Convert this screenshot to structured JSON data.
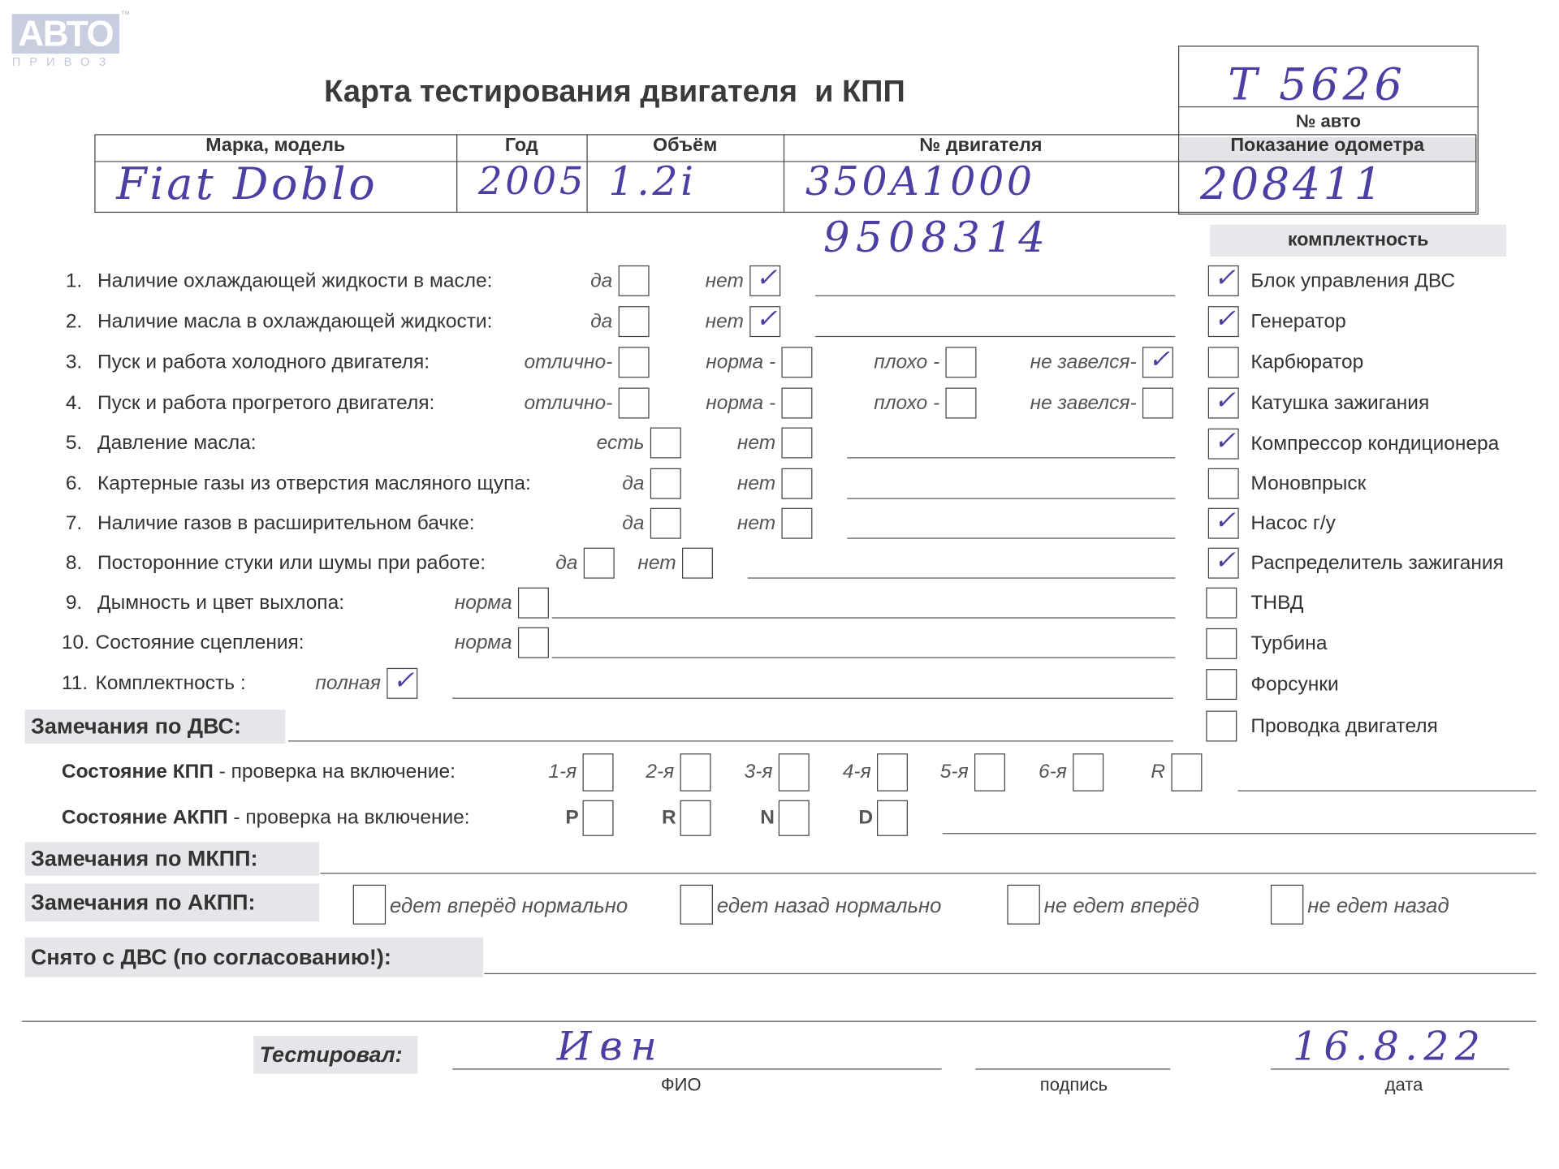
{
  "logo": {
    "text": "АВТО",
    "sub": "ПРИВОЗ",
    "tm": "™"
  },
  "title": "Карта тестирования двигателя  и КПП",
  "car_no": {
    "caption": "№ авто",
    "value": "T 5626"
  },
  "header_table": {
    "columns": [
      "Марка, модель",
      "Год",
      "Объём",
      "№ двигателя",
      "Показание одометра"
    ],
    "values": [
      "Fiat Doblo",
      "2005",
      "1.2i",
      "350A1000",
      "208411"
    ],
    "engine_no_extra": "9508314"
  },
  "checklist": [
    {
      "num": "1.",
      "label": "Наличие охлаждающей жидкости в масле:",
      "options": [
        {
          "label": "да",
          "checked": false
        },
        {
          "label": "нет",
          "checked": true
        }
      ]
    },
    {
      "num": "2.",
      "label": "Наличие масла в охлаждающей жидкости:",
      "options": [
        {
          "label": "да",
          "checked": false
        },
        {
          "label": "нет",
          "checked": true
        }
      ]
    },
    {
      "num": "3.",
      "label": "Пуск и работа холодного двигателя:",
      "options": [
        {
          "label": "отлично-",
          "checked": false
        },
        {
          "label": "норма -",
          "checked": false
        },
        {
          "label": "плохо -",
          "checked": false
        },
        {
          "label": "не завелся-",
          "checked": true
        }
      ]
    },
    {
      "num": "4.",
      "label": "Пуск и работа прогретого двигателя:",
      "options": [
        {
          "label": "отлично-",
          "checked": false
        },
        {
          "label": "норма -",
          "checked": false
        },
        {
          "label": "плохо -",
          "checked": false
        },
        {
          "label": "не завелся-",
          "checked": false
        }
      ]
    },
    {
      "num": "5.",
      "label": "Давление масла:",
      "options": [
        {
          "label": "есть",
          "checked": false
        },
        {
          "label": "нет",
          "checked": false
        }
      ]
    },
    {
      "num": "6.",
      "label": "Картерные газы из отверстия масляного щупа:",
      "options": [
        {
          "label": "да",
          "checked": false
        },
        {
          "label": "нет",
          "checked": false
        }
      ]
    },
    {
      "num": "7.",
      "label": "Наличие газов в расширительном бачке:",
      "options": [
        {
          "label": "да",
          "checked": false
        },
        {
          "label": "нет",
          "checked": false
        }
      ]
    },
    {
      "num": "8.",
      "label": "Посторонние стуки или шумы при работе:",
      "options": [
        {
          "label": "да",
          "checked": false
        },
        {
          "label": "нет",
          "checked": false
        }
      ]
    },
    {
      "num": "9.",
      "label": "Дымность и цвет выхлопа:",
      "options": [
        {
          "label": "норма",
          "checked": false
        }
      ]
    },
    {
      "num": "10.",
      "label": "Состояние сцепления:",
      "options": [
        {
          "label": "норма",
          "checked": false
        }
      ]
    },
    {
      "num": "11.",
      "label": "Комплектность :",
      "options": [
        {
          "label": "полная",
          "checked": true
        }
      ]
    }
  ],
  "completeness": {
    "title": "комплектность",
    "items": [
      {
        "label": "Блок управления ДВС",
        "checked": true
      },
      {
        "label": "Генератор",
        "checked": true
      },
      {
        "label": "Карбюратор",
        "checked": false
      },
      {
        "label": "Катушка зажигания",
        "checked": true
      },
      {
        "label": "Компрессор кондиционера",
        "checked": true
      },
      {
        "label": "Моновпрыск",
        "checked": false
      },
      {
        "label": "Насос г/у",
        "checked": true
      },
      {
        "label": "Распределитель зажигания",
        "checked": true
      },
      {
        "label": "ТНВД",
        "checked": false
      },
      {
        "label": "Турбина",
        "checked": false
      },
      {
        "label": "Форсунки",
        "checked": false
      },
      {
        "label": "Проводка двигателя",
        "checked": false
      }
    ]
  },
  "check_mark": "✓",
  "dvs_remarks": "Замечания по ДВС:",
  "kpp": {
    "bold": "Состояние КПП",
    "rest": " - проверка на включение:",
    "gears": [
      "1-я",
      "2-я",
      "3-я",
      "4-я",
      "5-я",
      "6-я",
      "R"
    ]
  },
  "akpp": {
    "bold": "Состояние АКПП",
    "rest": " - проверка на включение:",
    "gears": [
      "P",
      "R",
      "N",
      "D"
    ]
  },
  "mkpp_remarks": "Замечания по МКПП:",
  "akpp_remarks": {
    "label": "Замечания по АКПП:",
    "options": [
      "едет вперёд нормально",
      "едет назад нормально",
      "не едет вперёд",
      "не едет назад"
    ]
  },
  "removed": "Снято с ДВС (по согласованию!):",
  "tested": {
    "label": "Тестировал:",
    "fio_caption": "ФИО",
    "sign_caption": "подпись",
    "date_caption": "дата",
    "fio_value": "Ивн",
    "date_value": "16.8.22"
  }
}
